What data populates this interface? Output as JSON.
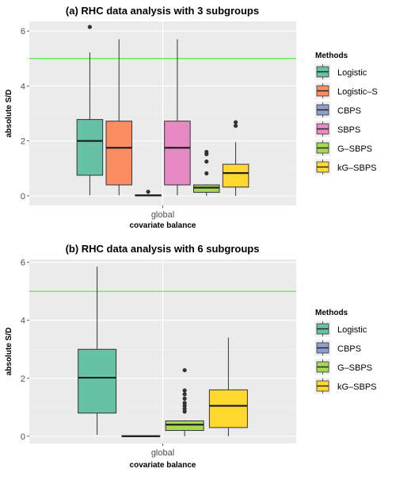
{
  "chart_data": [
    {
      "type": "boxplot",
      "title": "(a) RHC data analysis with 3 subgroups",
      "xlabel": "covariate balance",
      "ylabel": "absolute S/D",
      "x_category": "global",
      "ylim": [
        -0.35,
        6.35
      ],
      "yticks": [
        0,
        2,
        4,
        6
      ],
      "reference_line": {
        "y": 5,
        "color": "#4cf037"
      },
      "grid": true,
      "legend_title": "Methods",
      "legend_position": "right",
      "series": [
        {
          "name": "Logistic",
          "color": "#66c2a5",
          "q1": 0.75,
          "median": 2.0,
          "q3": 2.78,
          "whisker_low": 0.02,
          "whisker_high": 5.22,
          "outliers": [
            6.15
          ]
        },
        {
          "name": "Logistic–S",
          "color": "#fc8d62",
          "q1": 0.4,
          "median": 1.75,
          "q3": 2.72,
          "whisker_low": 0.02,
          "whisker_high": 5.7,
          "outliers": []
        },
        {
          "name": "CBPS",
          "color": "#8da0cb",
          "q1": 0.0,
          "median": 0.02,
          "q3": 0.04,
          "whisker_low": 0.0,
          "whisker_high": 0.06,
          "outliers": [
            0.15
          ]
        },
        {
          "name": "SBPS",
          "color": "#e78ac3",
          "q1": 0.4,
          "median": 1.75,
          "q3": 2.72,
          "whisker_low": 0.02,
          "whisker_high": 5.7,
          "outliers": []
        },
        {
          "name": "G–SBPS",
          "color": "#a6d854",
          "q1": 0.13,
          "median": 0.3,
          "q3": 0.4,
          "whisker_low": 0.0,
          "whisker_high": 0.42,
          "outliers": [
            0.82,
            1.25,
            1.52,
            1.6
          ]
        },
        {
          "name": "kG–SBPS",
          "color": "#ffd92f",
          "q1": 0.32,
          "median": 0.83,
          "q3": 1.15,
          "whisker_low": 0.0,
          "whisker_high": 1.95,
          "outliers": [
            2.55,
            2.68
          ]
        }
      ]
    },
    {
      "type": "boxplot",
      "title": "(b) RHC data analysis with 6 subgroups",
      "xlabel": "covariate balance",
      "ylabel": "absolute S/D",
      "x_category": "global",
      "ylim": [
        -0.25,
        6.1
      ],
      "yticks": [
        0,
        2,
        4,
        6
      ],
      "reference_line": {
        "y": 5,
        "color": "#4cf037"
      },
      "grid": true,
      "legend_title": "Methods",
      "legend_position": "right",
      "series": [
        {
          "name": "Logistic",
          "color": "#66c2a5",
          "q1": 0.8,
          "median": 2.02,
          "q3": 3.0,
          "whisker_low": 0.05,
          "whisker_high": 5.85,
          "outliers": []
        },
        {
          "name": "CBPS",
          "color": "#8da0cb",
          "q1": 0.0,
          "median": 0.0,
          "q3": 0.02,
          "whisker_low": 0.0,
          "whisker_high": 0.03,
          "outliers": []
        },
        {
          "name": "G–SBPS",
          "color": "#a6d854",
          "q1": 0.2,
          "median": 0.4,
          "q3": 0.53,
          "whisker_low": 0.0,
          "whisker_high": 0.55,
          "outliers": [
            0.85,
            0.95,
            1.05,
            1.15,
            1.3,
            1.45,
            1.58,
            2.28
          ]
        },
        {
          "name": "kG–SBPS",
          "color": "#ffd92f",
          "q1": 0.3,
          "median": 1.05,
          "q3": 1.6,
          "whisker_low": 0.0,
          "whisker_high": 3.4,
          "outliers": []
        }
      ]
    }
  ]
}
